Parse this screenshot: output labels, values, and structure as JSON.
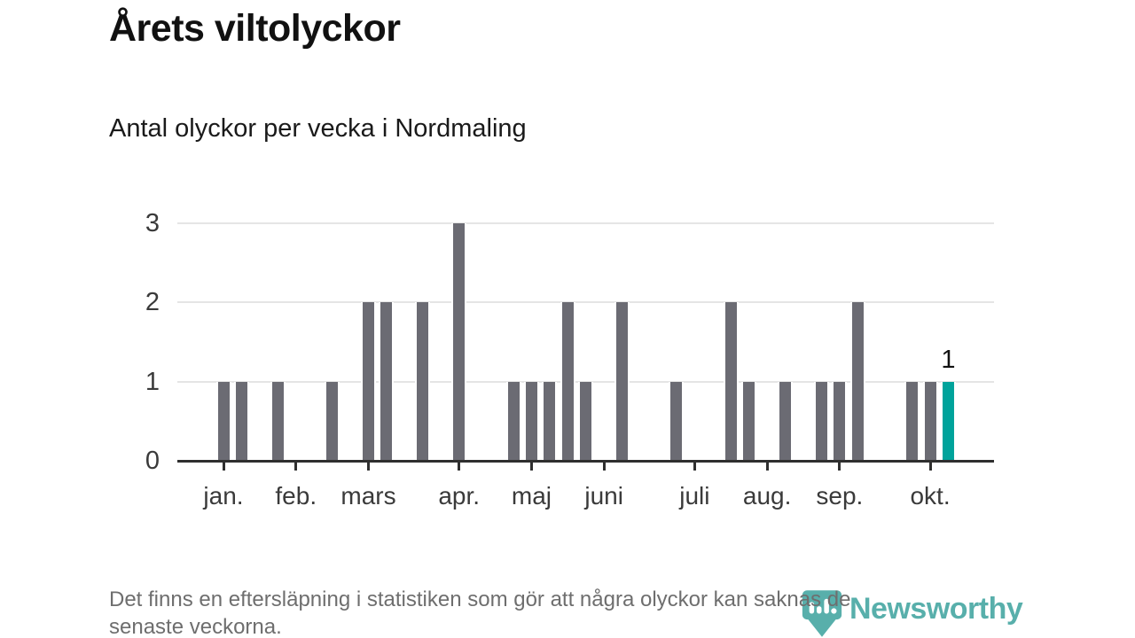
{
  "title": "Årets viltolyckor",
  "subtitle": "Antal olyckor per vecka i Nordmaling",
  "footer": {
    "note_lines": [
      "Det finns en eftersläpning i statistiken som gör att några olyckor kan saknas de",
      "senaste veckorna."
    ],
    "brand": "Newsworthy"
  },
  "colors": {
    "bar": "#6b6b73",
    "hl": "#00a39b",
    "grid": "#e5e5e5",
    "axis": "#2f2f2f",
    "brand": "#41a5a0"
  },
  "chart_data": {
    "type": "bar",
    "title": "Årets viltolyckor",
    "subtitle": "Antal olyckor per vecka i Nordmaling",
    "xlabel": "",
    "ylabel": "",
    "ylim": [
      0,
      3
    ],
    "yticks": [
      0,
      1,
      2,
      3
    ],
    "grid": true,
    "x_unit": "vecka",
    "weeks": [
      1,
      2,
      3,
      4,
      5,
      6,
      7,
      8,
      9,
      10,
      11,
      12,
      13,
      14,
      15,
      16,
      17,
      18,
      19,
      20,
      21,
      22,
      23,
      24,
      25,
      26,
      27,
      28,
      29,
      30,
      31,
      32,
      33,
      34,
      35,
      36,
      37,
      38,
      39,
      40,
      41
    ],
    "values": [
      1,
      1,
      0,
      1,
      0,
      0,
      1,
      0,
      2,
      2,
      0,
      2,
      0,
      3,
      0,
      0,
      1,
      1,
      1,
      2,
      1,
      0,
      2,
      0,
      0,
      1,
      0,
      0,
      2,
      1,
      0,
      1,
      0,
      1,
      1,
      2,
      0,
      0,
      1,
      1,
      1
    ],
    "highlight_index": 40,
    "highlight_value_label": "1",
    "month_ticks": [
      {
        "label": "jan.",
        "week": 1
      },
      {
        "label": "feb.",
        "week": 5
      },
      {
        "label": "mars",
        "week": 9
      },
      {
        "label": "apr.",
        "week": 14
      },
      {
        "label": "maj",
        "week": 18
      },
      {
        "label": "juni",
        "week": 22
      },
      {
        "label": "juli",
        "week": 27
      },
      {
        "label": "aug.",
        "week": 31
      },
      {
        "label": "sep.",
        "week": 35
      },
      {
        "label": "okt.",
        "week": 40
      }
    ],
    "legend": []
  }
}
